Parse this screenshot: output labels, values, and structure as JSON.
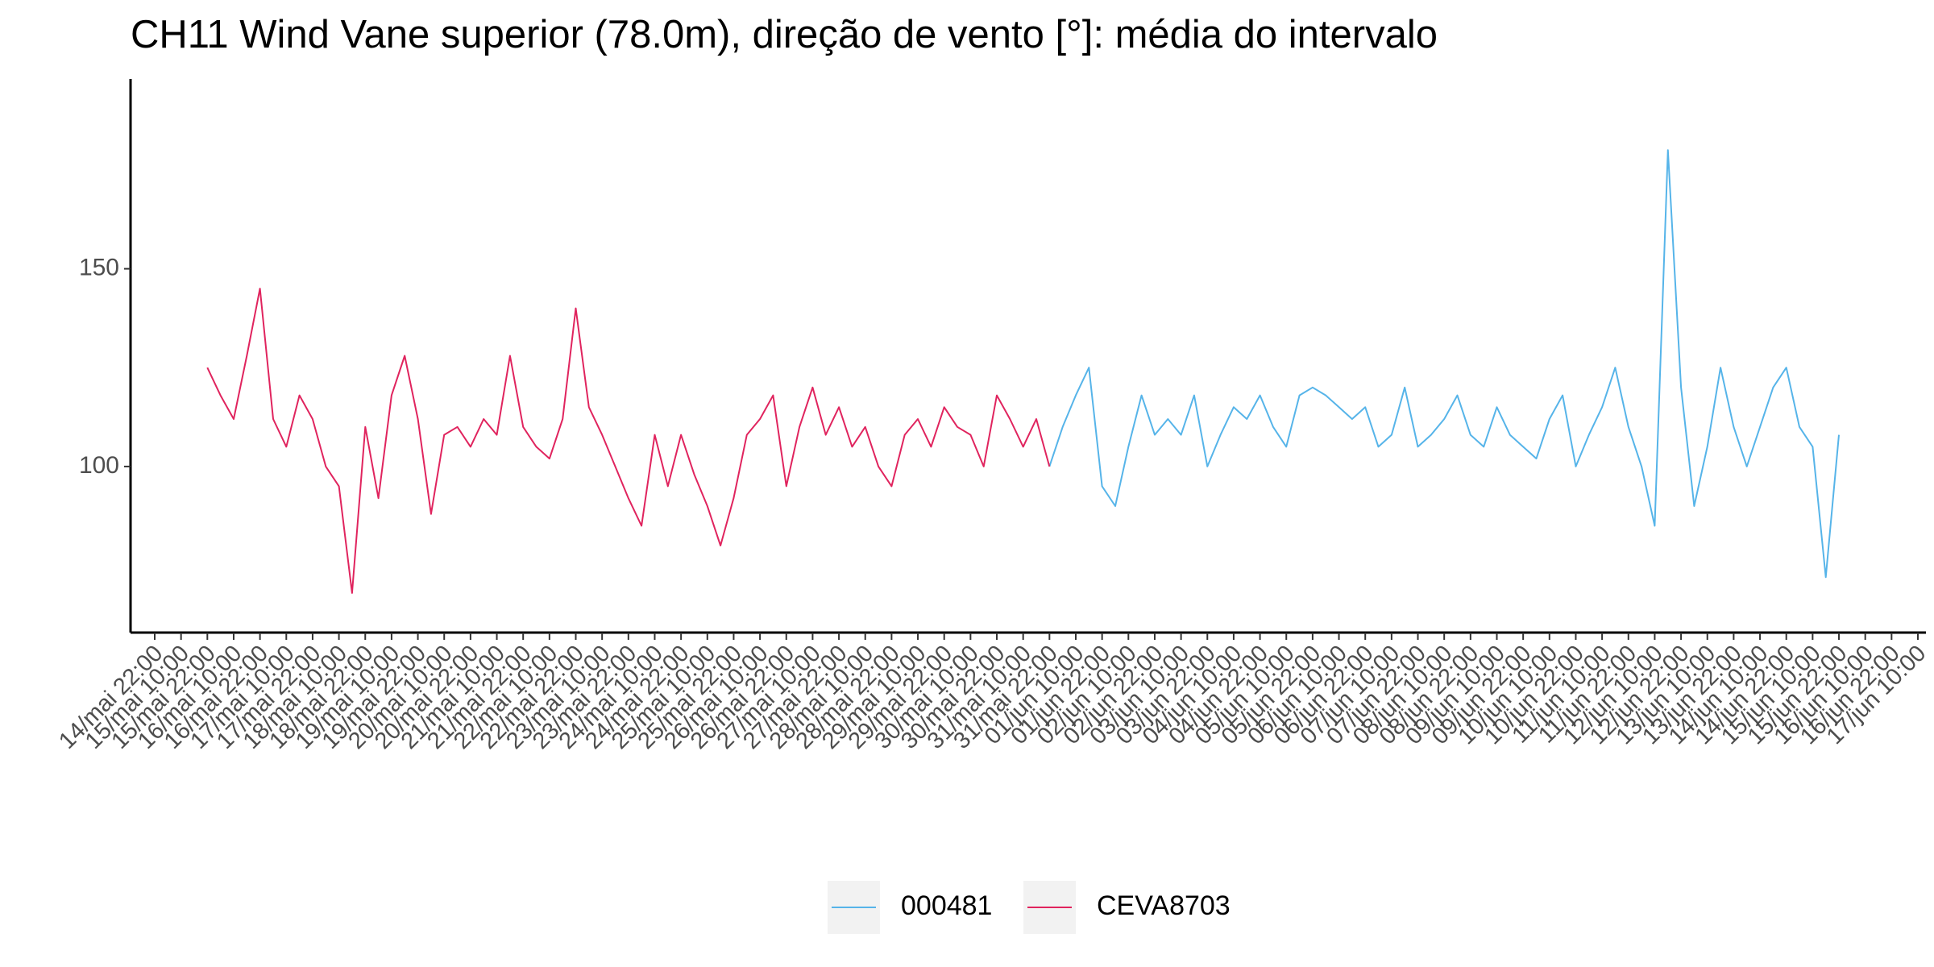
{
  "chart_data": {
    "type": "line",
    "title": "CH11 Wind Vane superior (78.0m), direção de vento [°]: média do intervalo",
    "categories": [
      "14/mai 22:00",
      null,
      "15/mai 10:00",
      null,
      "15/mai 22:00",
      null,
      "16/mai 10:00",
      null,
      "16/mai 22:00",
      null,
      "17/mai 10:00",
      null,
      "17/mai 22:00",
      null,
      "18/mai 10:00",
      null,
      "18/mai 22:00",
      null,
      "19/mai 10:00",
      null,
      "19/mai 22:00",
      null,
      "20/mai 10:00",
      null,
      "20/mai 22:00",
      null,
      "21/mai 10:00",
      null,
      "21/mai 22:00",
      null,
      "22/mai 10:00",
      null,
      "22/mai 22:00",
      null,
      "23/mai 10:00",
      null,
      "23/mai 22:00",
      null,
      "24/mai 10:00",
      null,
      "24/mai 22:00",
      null,
      "25/mai 10:00",
      null,
      "25/mai 22:00",
      null,
      "26/mai 10:00",
      null,
      "26/mai 22:00",
      null,
      "27/mai 10:00",
      null,
      "27/mai 22:00",
      null,
      "28/mai 10:00",
      null,
      "28/mai 22:00",
      null,
      "29/mai 10:00",
      null,
      "29/mai 22:00",
      null,
      "30/mai 10:00",
      null,
      "30/mai 22:00",
      null,
      "31/mai 10:00",
      null,
      "31/mai 22:00",
      null,
      "01/jun 10:00",
      null,
      "01/jun 22:00",
      null,
      "02/jun 10:00",
      null,
      "02/jun 22:00",
      null,
      "03/jun 10:00",
      null,
      "03/jun 22:00",
      null,
      "04/jun 10:00",
      null,
      "04/jun 22:00",
      null,
      "05/jun 10:00",
      null,
      "05/jun 22:00",
      null,
      "06/jun 10:00",
      null,
      "06/jun 22:00",
      null,
      "07/jun 10:00",
      null,
      "07/jun 22:00",
      null,
      "08/jun 10:00",
      null,
      "08/jun 22:00",
      null,
      "09/jun 10:00",
      null,
      "09/jun 22:00",
      null,
      "10/jun 10:00",
      null,
      "10/jun 22:00",
      null,
      "11/jun 10:00",
      null,
      "11/jun 22:00",
      null,
      "12/jun 10:00",
      null,
      "12/jun 22:00",
      null,
      "13/jun 10:00",
      null,
      "13/jun 22:00",
      null,
      "14/jun 10:00",
      null,
      "14/jun 22:00",
      null,
      "15/jun 10:00",
      null,
      "15/jun 22:00",
      null,
      "16/jun 10:00",
      null,
      "16/jun 22:00",
      null,
      "17/jun 10:00"
    ],
    "series": [
      {
        "name": "000481",
        "color": "#56B4E9",
        "values": [
          null,
          null,
          null,
          null,
          null,
          null,
          null,
          null,
          null,
          null,
          null,
          null,
          null,
          null,
          null,
          null,
          null,
          null,
          null,
          null,
          null,
          null,
          null,
          null,
          null,
          null,
          null,
          null,
          null,
          null,
          null,
          null,
          null,
          null,
          null,
          null,
          null,
          null,
          null,
          null,
          null,
          null,
          null,
          null,
          null,
          null,
          null,
          null,
          null,
          null,
          null,
          null,
          null,
          null,
          null,
          null,
          null,
          null,
          null,
          null,
          null,
          null,
          null,
          null,
          null,
          null,
          null,
          null,
          100,
          110,
          118,
          125,
          95,
          90,
          105,
          118,
          108,
          112,
          108,
          118,
          100,
          108,
          115,
          112,
          118,
          110,
          105,
          118,
          120,
          118,
          115,
          112,
          115,
          105,
          108,
          120,
          105,
          108,
          112,
          118,
          108,
          105,
          115,
          108,
          105,
          102,
          112,
          118,
          100,
          108,
          115,
          125,
          110,
          100,
          85,
          180,
          120,
          90,
          105,
          125,
          110,
          100,
          110,
          120,
          125,
          110,
          105,
          72,
          108,
          null,
          null,
          null,
          null,
          null,
          null
        ]
      },
      {
        "name": "CEVA8703",
        "color": "#E0245E",
        "values": [
          null,
          null,
          null,
          null,
          125,
          118,
          112,
          128,
          145,
          112,
          105,
          118,
          112,
          100,
          95,
          68,
          110,
          92,
          118,
          128,
          112,
          88,
          108,
          110,
          105,
          112,
          108,
          128,
          110,
          105,
          102,
          112,
          140,
          115,
          108,
          100,
          92,
          85,
          108,
          95,
          108,
          98,
          90,
          80,
          92,
          108,
          112,
          118,
          95,
          110,
          120,
          108,
          115,
          105,
          110,
          100,
          95,
          108,
          112,
          105,
          115,
          110,
          108,
          100,
          118,
          112,
          105,
          112,
          100,
          null,
          null,
          null,
          null,
          null,
          null,
          null,
          null,
          null,
          null,
          null,
          null,
          null,
          null,
          null,
          null,
          null,
          null,
          null,
          null,
          null,
          null,
          null,
          null,
          null,
          null,
          null,
          null,
          null,
          null,
          null,
          null,
          null,
          null,
          null,
          null,
          null,
          null,
          null,
          null,
          null,
          null,
          null,
          null,
          null,
          null,
          null,
          null,
          null,
          null,
          null,
          null,
          null,
          null,
          null,
          null,
          null,
          null,
          null,
          null,
          null,
          null,
          null,
          null,
          null,
          null
        ]
      }
    ],
    "ylim": [
      58,
      198
    ],
    "yticks": [
      100,
      150
    ],
    "grid": false,
    "legend": "bottom"
  }
}
